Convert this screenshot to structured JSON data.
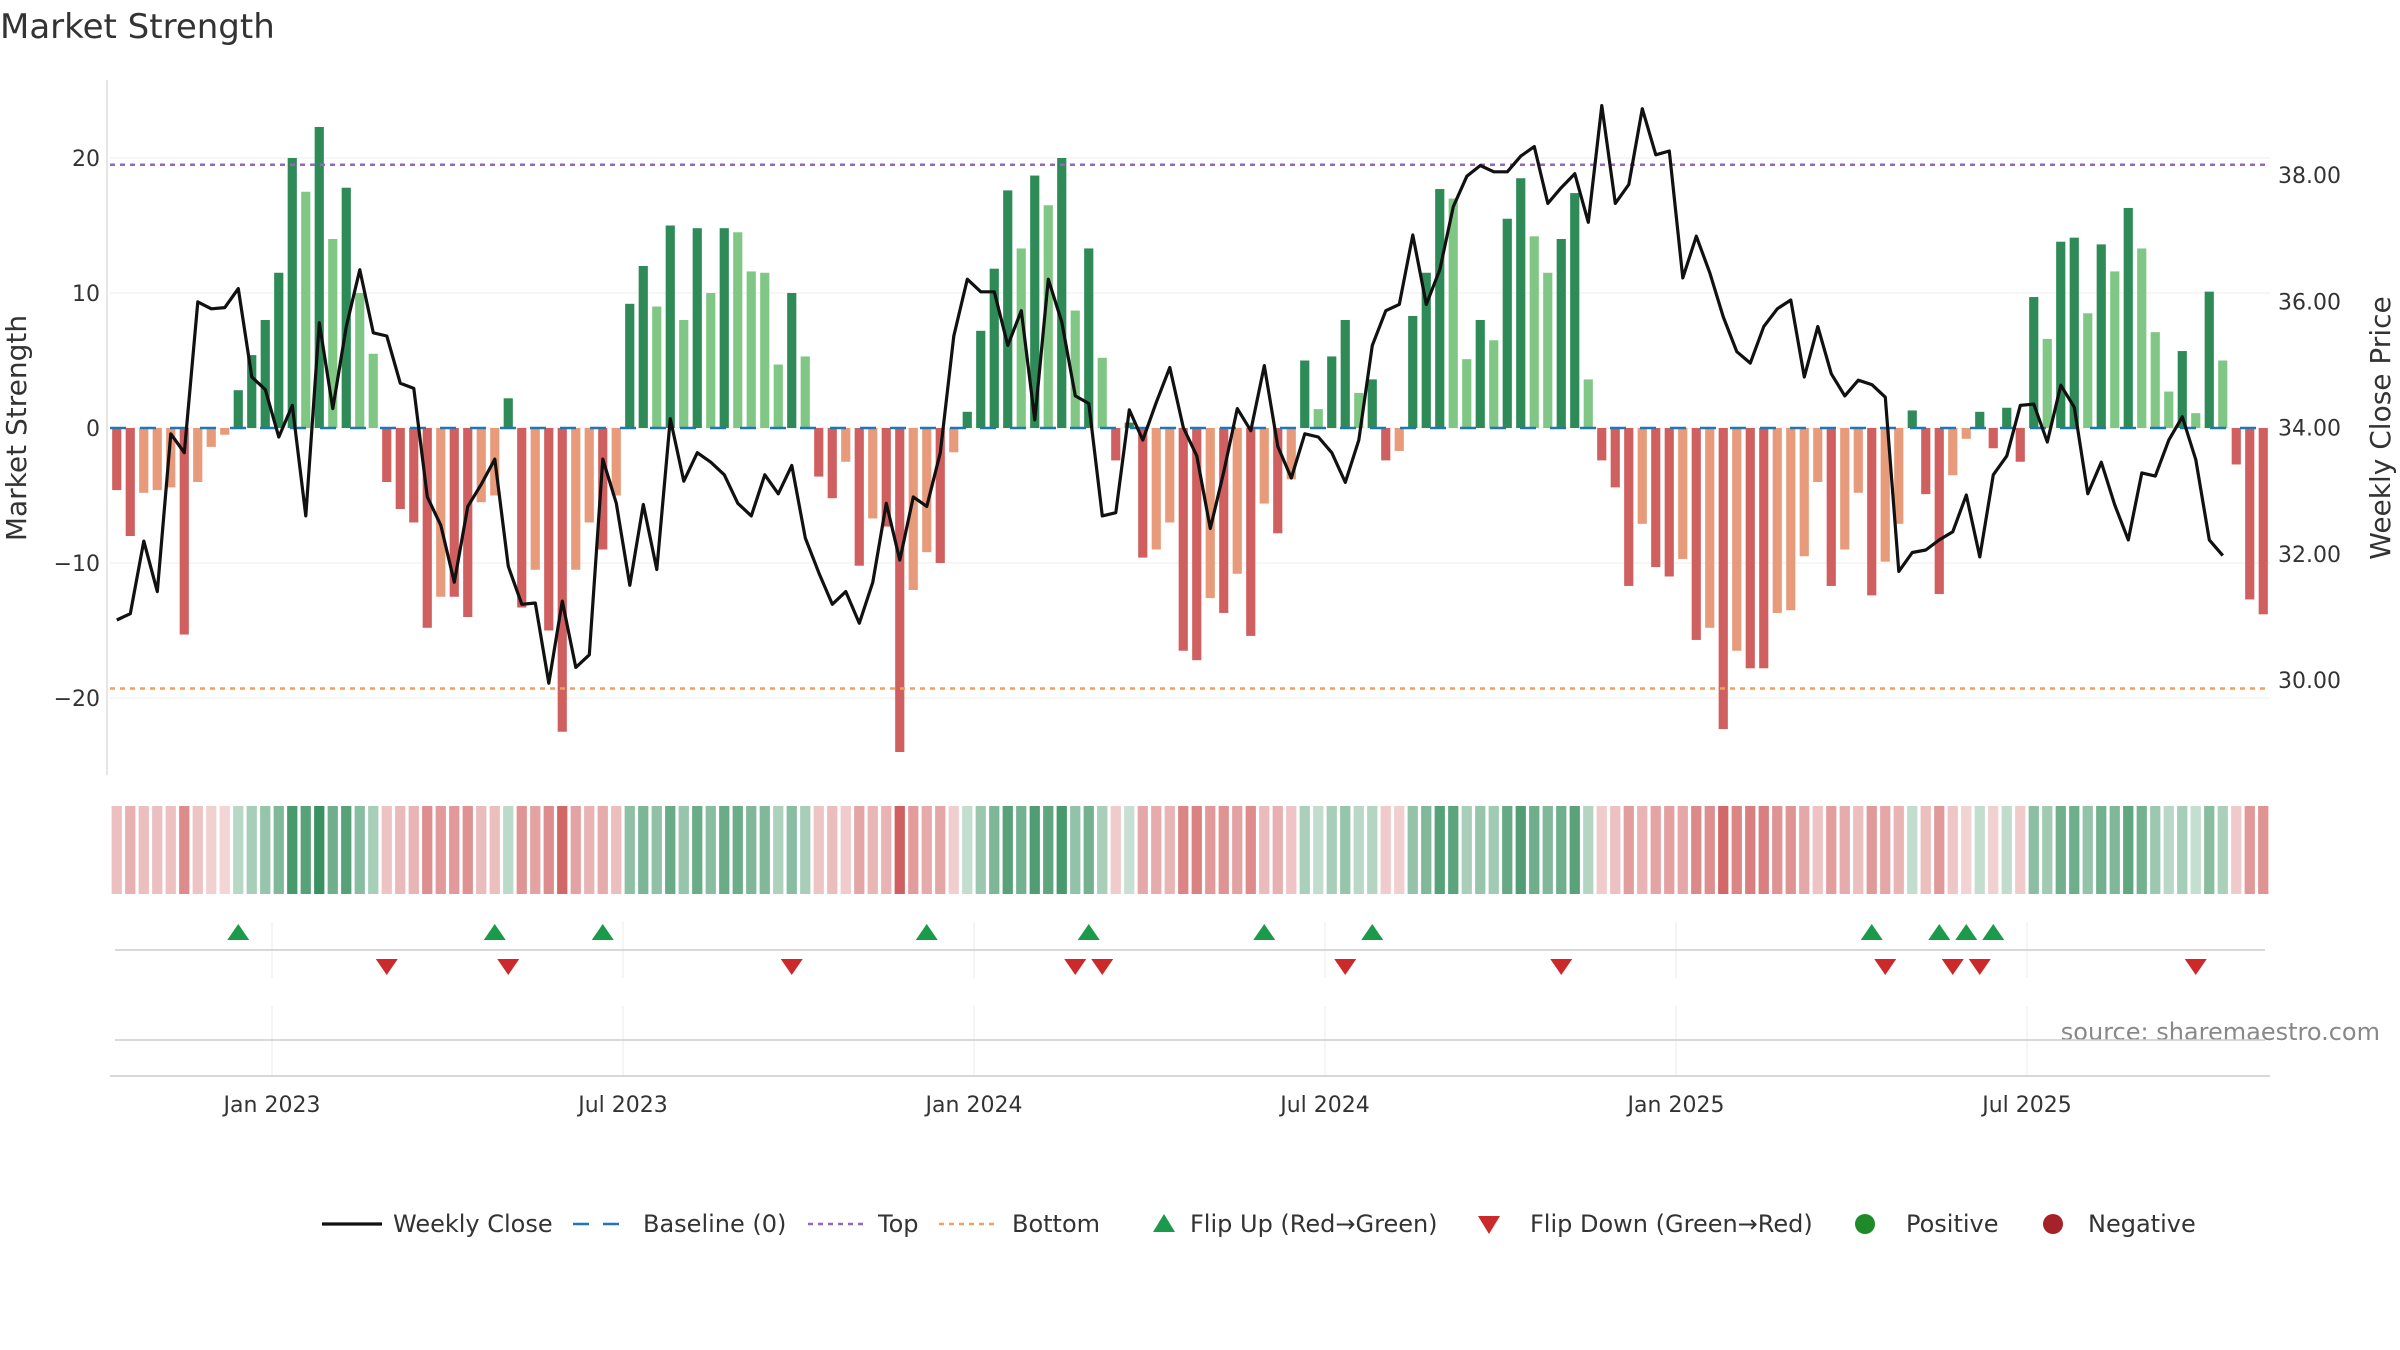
{
  "chart_data": {
    "type": "bar",
    "title": "Market Strength",
    "ylabel_left": "Market Strength",
    "ylabel_right": "Weekly Close Price",
    "source": "source: sharemaestro.com",
    "left_axis": {
      "ylim": [
        -25.5,
        25.5
      ],
      "ticks": [
        {
          "v": 20,
          "label": "20"
        },
        {
          "v": 10,
          "label": "10"
        },
        {
          "v": 0,
          "label": "0"
        },
        {
          "v": -10,
          "label": "−10"
        },
        {
          "v": -20,
          "label": "−20"
        }
      ]
    },
    "right_axis": {
      "ylim": [
        28.6,
        39.6
      ],
      "ticks": [
        {
          "v": 38,
          "label": "38.00"
        },
        {
          "v": 36,
          "label": "36.00"
        },
        {
          "v": 34,
          "label": "34.00"
        },
        {
          "v": 32,
          "label": "32.00"
        },
        {
          "v": 30,
          "label": "30.00"
        }
      ]
    },
    "top_line": 19.5,
    "bottom_line": -19.3,
    "x_ticks": [
      "Jan 2023",
      "Jul 2023",
      "Jan 2024",
      "Jul 2024",
      "Jan 2025",
      "Jul 2025"
    ],
    "strength": [
      -4.6,
      -8,
      -4.8,
      -4.6,
      -4.4,
      -15.3,
      -4,
      -1.4,
      -0.5,
      2.8,
      5.4,
      8,
      11.5,
      20,
      17.5,
      22.3,
      14,
      17.8,
      10,
      5.5,
      -4,
      -6,
      -7,
      -14.8,
      -12.5,
      -12.5,
      -14,
      -5.5,
      -5,
      2.2,
      -13.3,
      -10.5,
      -15,
      -22.5,
      -10.5,
      -7,
      -9,
      -5,
      9.2,
      12,
      9,
      15,
      8,
      14.8,
      10,
      14.8,
      14.5,
      11.6,
      11.5,
      4.7,
      10,
      5.3,
      -3.6,
      -5.2,
      -2.5,
      -10.2,
      -6.7,
      -7.3,
      -24,
      -12,
      -9.2,
      -10,
      -1.8,
      1.2,
      7.2,
      11.8,
      17.6,
      13.3,
      18.7,
      16.5,
      20,
      8.7,
      13.3,
      5.2,
      -2.4,
      0.4,
      -9.6,
      -9,
      -7,
      -16.5,
      -17.2,
      -12.6,
      -13.7,
      -10.8,
      -15.4,
      -5.6,
      -7.8,
      -3.8,
      5,
      1.4,
      5.3,
      8,
      2.6,
      3.6,
      -2.4,
      -1.7,
      8.3,
      11.5,
      17.7,
      17,
      5.1,
      8,
      6.5,
      15.5,
      18.5,
      14.2,
      11.5,
      14,
      17.4,
      3.6,
      -2.4,
      -4.4,
      -11.7,
      -7.1,
      -10.3,
      -11,
      -9.7,
      -15.7,
      -14.8,
      -22.3,
      -16.5,
      -17.8,
      -17.8,
      -13.7,
      -13.5,
      -9.5,
      -4,
      -11.7,
      -9,
      -4.8,
      -12.4,
      -9.9,
      -7.1,
      1.3,
      -4.9,
      -12.3,
      -3.5,
      -0.8,
      1.2,
      -1.5,
      1.5,
      -2.5,
      9.7,
      6.6,
      13.8,
      14.1,
      8.5,
      13.6,
      11.6,
      16.3,
      13.3,
      7.1,
      2.7,
      5.7,
      1.1,
      10.1,
      5,
      -2.7,
      -12.7,
      -13.8
    ],
    "weekly_close": [
      30.95,
      31.05,
      32.2,
      31.4,
      33.9,
      33.6,
      35.99,
      35.88,
      35.9,
      36.2,
      34.8,
      34.6,
      33.85,
      34.35,
      32.6,
      35.66,
      34.3,
      35.6,
      36.5,
      35.5,
      35.45,
      34.7,
      34.62,
      32.9,
      32.45,
      31.55,
      32.75,
      33.1,
      33.5,
      31.8,
      31.2,
      31.22,
      29.95,
      31.25,
      30.2,
      30.4,
      33.5,
      32.8,
      31.5,
      32.78,
      31.75,
      34.14,
      33.15,
      33.6,
      33.45,
      33.25,
      32.8,
      32.6,
      33.25,
      32.95,
      33.4,
      32.25,
      31.7,
      31.2,
      31.4,
      30.9,
      31.55,
      32.8,
      31.9,
      32.9,
      32.75,
      33.6,
      35.45,
      36.35,
      36.15,
      36.15,
      35.3,
      35.85,
      34.12,
      36.35,
      35.67,
      34.5,
      34.38,
      32.6,
      32.65,
      34.28,
      33.8,
      34.4,
      34.95,
      34,
      33.55,
      32.4,
      33.3,
      34.3,
      33.95,
      34.98,
      33.7,
      33.2,
      33.9,
      33.85,
      33.6,
      33.13,
      33.8,
      35.3,
      35.85,
      35.95,
      37.05,
      35.95,
      36.5,
      37.5,
      37.98,
      38.15,
      38.05,
      38.05,
      38.3,
      38.45,
      37.55,
      37.8,
      38.02,
      37.25,
      39.1,
      37.55,
      37.85,
      39.05,
      38.32,
      38.38,
      36.37,
      37.03,
      36.45,
      35.75,
      35.2,
      35.02,
      35.6,
      35.88,
      36.02,
      34.8,
      35.6,
      34.85,
      34.5,
      34.75,
      34.68,
      34.48,
      31.72,
      32.02,
      32.06,
      32.22,
      32.35,
      32.93,
      31.95,
      33.25,
      33.55,
      34.35,
      34.37,
      33.77,
      34.67,
      34.32,
      32.95,
      33.45,
      32.77,
      32.22,
      33.28,
      33.23,
      33.8,
      34.17,
      33.49,
      32.22,
      31.97
    ],
    "bar_colors": {
      "dark_green": "#2e8a57",
      "light_green": "#80c785",
      "dark_red": "#d06060",
      "light_red": "#e89b7a",
      "baseline": "#1f77b4",
      "top": "#9467bd",
      "bottom": "#f0a060",
      "flip_up": "#1a9a4a",
      "flip_down": "#cc2a2a",
      "positive": "#1f8a2a",
      "negative": "#a52228",
      "line": "#111111"
    },
    "flip_up_weeks": [
      9,
      28,
      36,
      60,
      72,
      85,
      93,
      130,
      135,
      137,
      139
    ],
    "flip_down_weeks": [
      20,
      29,
      50,
      71,
      73,
      91,
      107,
      131,
      136,
      138,
      154
    ],
    "legend": [
      {
        "key": "weekly_close",
        "label": "Weekly Close"
      },
      {
        "key": "baseline",
        "label": "Baseline (0)"
      },
      {
        "key": "top",
        "label": "Top"
      },
      {
        "key": "bottom",
        "label": "Bottom"
      },
      {
        "key": "flip_up",
        "label": "Flip Up (Red→Green)"
      },
      {
        "key": "flip_down",
        "label": "Flip Down (Green→Red)"
      },
      {
        "key": "positive",
        "label": "Positive"
      },
      {
        "key": "negative",
        "label": "Negative"
      }
    ]
  }
}
